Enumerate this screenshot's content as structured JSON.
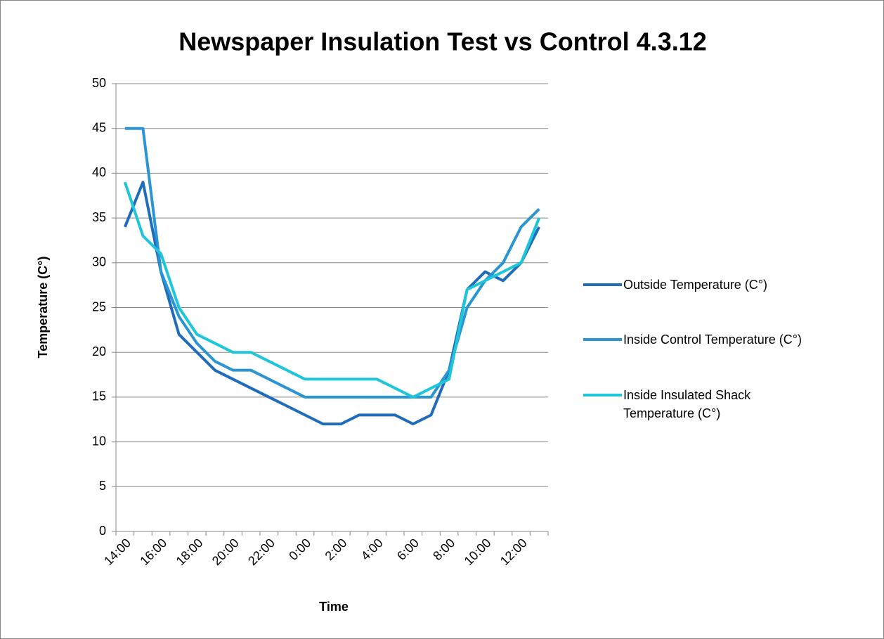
{
  "chart_data": {
    "type": "line",
    "title": "Newspaper Insulation Test vs Control 4.3.12",
    "x_label": "Time",
    "y_label": "Temperature (C°)",
    "categories": [
      "14:00",
      null,
      "16:00",
      null,
      "18:00",
      null,
      "20:00",
      null,
      "22:00",
      null,
      "0:00",
      null,
      "2:00",
      null,
      "4:00",
      null,
      "6:00",
      null,
      "8:00",
      null,
      "10:00",
      null,
      "12:00",
      null
    ],
    "series": [
      {
        "name": "Outside Temperature (C°)",
        "color": "#1f6cbc",
        "values": [
          34,
          39,
          29,
          22,
          20,
          18,
          17,
          16,
          15,
          14,
          13,
          12,
          12,
          13,
          13,
          13,
          12,
          13,
          18,
          27,
          29,
          28,
          30,
          34
        ]
      },
      {
        "name": "Inside Control Temperature (C°)",
        "color": "#2b95d3",
        "values": [
          45,
          45,
          29,
          24,
          21,
          19,
          18,
          18,
          17,
          16,
          15,
          15,
          15,
          15,
          15,
          15,
          15,
          15,
          18,
          25,
          28,
          30,
          34,
          36
        ]
      },
      {
        "name": "Inside Insulated Shack Temperature (C°)",
        "color": "#1ec6da",
        "values": [
          39,
          33,
          31,
          25,
          22,
          21,
          20,
          20,
          19,
          18,
          17,
          17,
          17,
          17,
          17,
          16,
          15,
          16,
          17,
          27,
          28,
          29,
          30,
          35
        ]
      }
    ],
    "ylim": [
      0,
      50
    ],
    "yticks": [
      0,
      5,
      10,
      15,
      20,
      25,
      30,
      35,
      40,
      45,
      50
    ],
    "grid": true,
    "legend": "right"
  }
}
